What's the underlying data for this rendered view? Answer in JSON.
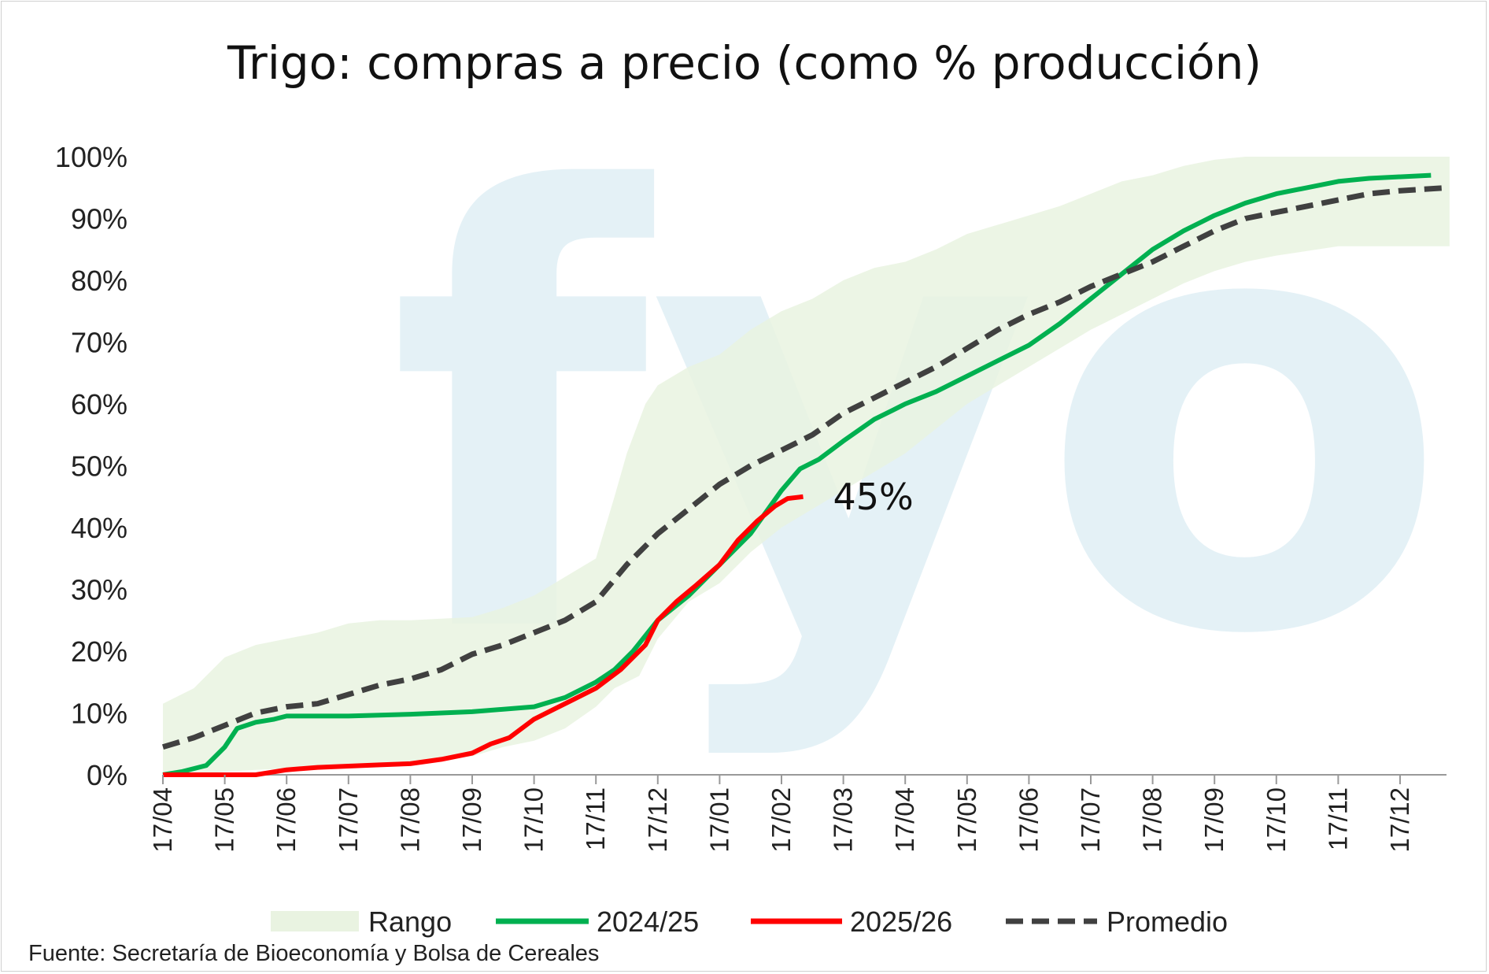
{
  "chart_data": {
    "type": "line",
    "title": "Trigo: compras a precio (como % producción)",
    "watermark": "fyo",
    "x_ticks": [
      "17/04",
      "17/05",
      "17/06",
      "17/07",
      "17/08",
      "17/09",
      "17/10",
      "17/11",
      "17/12",
      "17/01",
      "17/02",
      "17/03",
      "17/04",
      "17/05",
      "17/06",
      "17/07",
      "17/08",
      "17/09",
      "17/10",
      "17/11",
      "17/12"
    ],
    "y_ticks": [
      "0%",
      "10%",
      "20%",
      "30%",
      "40%",
      "50%",
      "60%",
      "70%",
      "80%",
      "90%",
      "100%"
    ],
    "ylim": [
      0,
      100
    ],
    "x_months_range": [
      0,
      20.8
    ],
    "annotation": {
      "text": "45%",
      "x": 10.35,
      "y": 45
    },
    "source": "Fuente: Secretaría de Bioeconomía y Bolsa de Cereales",
    "legend_position": "bottom",
    "legend": [
      {
        "label": "Rango",
        "type": "area",
        "color": "#e9f3e1"
      },
      {
        "label": "2024/25",
        "type": "line",
        "color": "#00b050"
      },
      {
        "label": "2025/26",
        "type": "line",
        "color": "#ff0000"
      },
      {
        "label": "Promedio",
        "type": "dashed",
        "color": "#404040"
      }
    ],
    "range": {
      "name": "Rango",
      "color": "#e9f3e1",
      "upper": [
        [
          0,
          11.5
        ],
        [
          0.5,
          14
        ],
        [
          1,
          19
        ],
        [
          1.5,
          21
        ],
        [
          2,
          22
        ],
        [
          2.5,
          23
        ],
        [
          3,
          24.5
        ],
        [
          3.5,
          25
        ],
        [
          4,
          25
        ],
        [
          5,
          25.5
        ],
        [
          5.5,
          27
        ],
        [
          6,
          29
        ],
        [
          6.5,
          32
        ],
        [
          7,
          35
        ],
        [
          7.3,
          45
        ],
        [
          7.5,
          52
        ],
        [
          7.8,
          60
        ],
        [
          8,
          63
        ],
        [
          8.5,
          66
        ],
        [
          9,
          68
        ],
        [
          9.5,
          72
        ],
        [
          10,
          75
        ],
        [
          10.5,
          77
        ],
        [
          11,
          80
        ],
        [
          11.5,
          82
        ],
        [
          12,
          83
        ],
        [
          12.5,
          85
        ],
        [
          13,
          87.5
        ],
        [
          13.5,
          89
        ],
        [
          14,
          90.5
        ],
        [
          14.5,
          92
        ],
        [
          15,
          94
        ],
        [
          15.5,
          96
        ],
        [
          16,
          97
        ],
        [
          16.5,
          98.5
        ],
        [
          17,
          99.5
        ],
        [
          17.5,
          100
        ],
        [
          20.8,
          100
        ]
      ],
      "lower": [
        [
          0,
          0
        ],
        [
          0.5,
          0
        ],
        [
          1,
          0.5
        ],
        [
          1.5,
          0.8
        ],
        [
          2,
          1
        ],
        [
          3,
          1.2
        ],
        [
          4,
          1.8
        ],
        [
          4.5,
          2.5
        ],
        [
          5,
          3
        ],
        [
          5.5,
          4.5
        ],
        [
          6,
          5.5
        ],
        [
          6.5,
          7.5
        ],
        [
          7,
          11
        ],
        [
          7.3,
          14
        ],
        [
          7.7,
          16
        ],
        [
          8,
          22
        ],
        [
          8.5,
          28
        ],
        [
          9,
          31
        ],
        [
          9.5,
          36
        ],
        [
          10,
          40
        ],
        [
          10.5,
          43
        ],
        [
          11,
          46
        ],
        [
          11.5,
          49
        ],
        [
          12,
          52
        ],
        [
          12.5,
          56
        ],
        [
          13,
          60
        ],
        [
          13.5,
          63
        ],
        [
          14,
          66
        ],
        [
          14.5,
          69
        ],
        [
          15,
          72
        ],
        [
          15.5,
          74.5
        ],
        [
          16,
          77
        ],
        [
          16.5,
          79.5
        ],
        [
          17,
          81.5
        ],
        [
          17.5,
          83
        ],
        [
          18,
          84
        ],
        [
          19,
          85.5
        ],
        [
          20.8,
          85.5
        ]
      ]
    },
    "series": [
      {
        "name": "2024/25",
        "color": "#00b050",
        "style": "solid",
        "points": [
          [
            0,
            0
          ],
          [
            0.3,
            0.5
          ],
          [
            0.7,
            1.5
          ],
          [
            1,
            4.5
          ],
          [
            1.2,
            7.5
          ],
          [
            1.5,
            8.5
          ],
          [
            1.8,
            9
          ],
          [
            2,
            9.5
          ],
          [
            3,
            9.5
          ],
          [
            4,
            9.8
          ],
          [
            5,
            10.2
          ],
          [
            6,
            11
          ],
          [
            6.5,
            12.5
          ],
          [
            7,
            15
          ],
          [
            7.3,
            17
          ],
          [
            7.6,
            20
          ],
          [
            8,
            25
          ],
          [
            8.5,
            29
          ],
          [
            9,
            34
          ],
          [
            9.5,
            39
          ],
          [
            10,
            46
          ],
          [
            10.3,
            49.5
          ],
          [
            10.6,
            51
          ],
          [
            11,
            54
          ],
          [
            11.5,
            57.5
          ],
          [
            11.8,
            59
          ],
          [
            12,
            60
          ],
          [
            12.5,
            62
          ],
          [
            13,
            64.5
          ],
          [
            13.5,
            67
          ],
          [
            14,
            69.5
          ],
          [
            14.5,
            73
          ],
          [
            15,
            77
          ],
          [
            15.5,
            81
          ],
          [
            16,
            85
          ],
          [
            16.5,
            88
          ],
          [
            17,
            90.5
          ],
          [
            17.5,
            92.5
          ],
          [
            18,
            94
          ],
          [
            18.5,
            95
          ],
          [
            19,
            96
          ],
          [
            19.5,
            96.5
          ],
          [
            20.5,
            97
          ]
        ]
      },
      {
        "name": "2025/26",
        "color": "#ff0000",
        "style": "solid",
        "points": [
          [
            0,
            0
          ],
          [
            1.5,
            0
          ],
          [
            2,
            0.8
          ],
          [
            2.5,
            1.2
          ],
          [
            3,
            1.4
          ],
          [
            3.5,
            1.6
          ],
          [
            4,
            1.8
          ],
          [
            4.5,
            2.5
          ],
          [
            5,
            3.5
          ],
          [
            5.3,
            5
          ],
          [
            5.6,
            6
          ],
          [
            6,
            9
          ],
          [
            6.3,
            10.5
          ],
          [
            6.6,
            12
          ],
          [
            7,
            14
          ],
          [
            7.4,
            17
          ],
          [
            7.8,
            21
          ],
          [
            8,
            25
          ],
          [
            8.3,
            28
          ],
          [
            8.6,
            30.5
          ],
          [
            9,
            34
          ],
          [
            9.3,
            38
          ],
          [
            9.6,
            41
          ],
          [
            9.9,
            43.5
          ],
          [
            10.1,
            44.7
          ],
          [
            10.35,
            45
          ]
        ]
      },
      {
        "name": "Promedio",
        "color": "#404040",
        "style": "dashed",
        "points": [
          [
            0,
            4.5
          ],
          [
            0.5,
            6
          ],
          [
            1,
            8
          ],
          [
            1.5,
            10
          ],
          [
            2,
            11
          ],
          [
            2.5,
            11.5
          ],
          [
            3,
            13
          ],
          [
            3.5,
            14.5
          ],
          [
            4,
            15.5
          ],
          [
            4.5,
            17
          ],
          [
            5,
            19.5
          ],
          [
            5.5,
            21
          ],
          [
            6,
            23
          ],
          [
            6.5,
            25
          ],
          [
            7,
            28
          ],
          [
            7.5,
            34
          ],
          [
            8,
            39
          ],
          [
            8.5,
            43
          ],
          [
            9,
            47
          ],
          [
            9.5,
            50
          ],
          [
            10,
            52.5
          ],
          [
            10.5,
            55
          ],
          [
            11,
            58.5
          ],
          [
            11.5,
            61
          ],
          [
            12,
            63.5
          ],
          [
            12.5,
            66
          ],
          [
            13,
            69
          ],
          [
            13.5,
            72
          ],
          [
            14,
            74.5
          ],
          [
            14.5,
            76.5
          ],
          [
            15,
            79
          ],
          [
            15.5,
            81
          ],
          [
            16,
            83
          ],
          [
            16.5,
            85.5
          ],
          [
            17,
            88
          ],
          [
            17.5,
            90
          ],
          [
            18,
            91
          ],
          [
            18.5,
            92
          ],
          [
            19,
            93
          ],
          [
            19.5,
            94
          ],
          [
            20,
            94.5
          ],
          [
            20.8,
            95
          ]
        ]
      }
    ]
  }
}
